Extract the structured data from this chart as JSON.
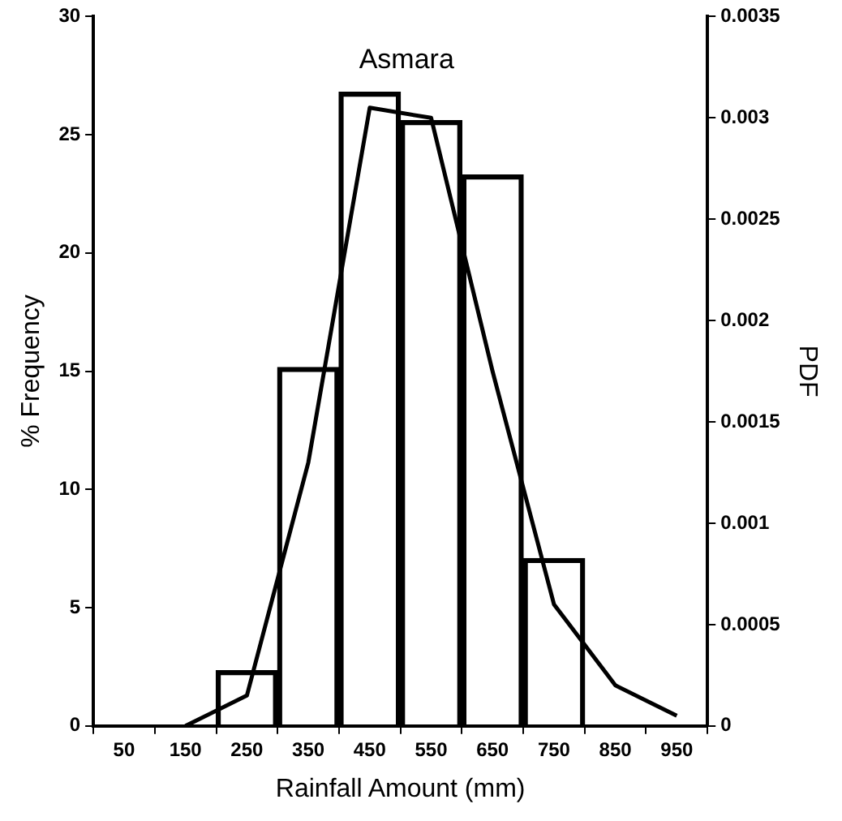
{
  "chart_data": {
    "type": "bar",
    "title": "Asmara",
    "xlabel": "Rainfall Amount (mm)",
    "ylabel": "% Frequency",
    "y2label": "PDF",
    "categories": [
      "50",
      "150",
      "250",
      "350",
      "450",
      "550",
      "650",
      "750",
      "850",
      "950"
    ],
    "series": [
      {
        "type": "bar",
        "color": "#000000",
        "values": [
          null,
          null,
          2.34,
          15.16,
          26.8,
          25.6,
          23.3,
          7.08,
          null,
          null
        ]
      },
      {
        "type": "line",
        "axis": "y2",
        "color": "#000000",
        "values": [
          null,
          0,
          0.00015,
          0.0013,
          0.00305,
          0.003,
          0.00175,
          0.0006,
          0.0002,
          5e-05
        ]
      }
    ],
    "ylim": [
      0,
      30
    ],
    "yticks": [
      0,
      5,
      10,
      15,
      20,
      25,
      30
    ],
    "y2lim": [
      0,
      0.0035
    ],
    "y2ticks": [
      0,
      0.0005,
      0.001,
      0.0015,
      0.002,
      0.0025,
      0.003,
      0.0035
    ],
    "grid": false,
    "legend": false,
    "marker": "none",
    "line_style": "solid"
  }
}
